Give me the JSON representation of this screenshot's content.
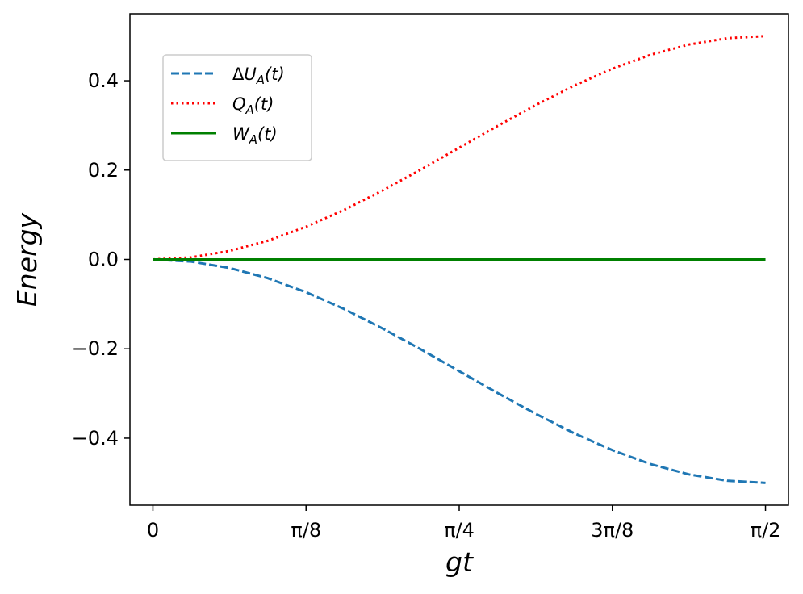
{
  "chart_data": {
    "type": "line",
    "xlabel": "gt",
    "ylabel": "Energy",
    "xlim": [
      -0.0589,
      1.6297
    ],
    "ylim": [
      -0.55,
      0.55
    ],
    "grid": false,
    "legend_placement": "upper-left",
    "x_ticks": [
      {
        "value": 0,
        "label": "0"
      },
      {
        "value": 0.3927,
        "label": "π/8"
      },
      {
        "value": 0.7854,
        "label": "π/4"
      },
      {
        "value": 1.1781,
        "label": "3π/8"
      },
      {
        "value": 1.5708,
        "label": "π/2"
      }
    ],
    "y_ticks": [
      {
        "value": -0.4,
        "label": "−0.4"
      },
      {
        "value": -0.2,
        "label": "−0.2"
      },
      {
        "value": 0.0,
        "label": "0.0"
      },
      {
        "value": 0.2,
        "label": "0.2"
      },
      {
        "value": 0.4,
        "label": "0.4"
      }
    ],
    "x": [
      0,
      0.0982,
      0.1963,
      0.2945,
      0.3927,
      0.4909,
      0.589,
      0.6872,
      0.7854,
      0.8836,
      0.9817,
      1.0799,
      1.1781,
      1.2763,
      1.3744,
      1.4726,
      1.5708
    ],
    "series": [
      {
        "name": "ΔU_A(t)",
        "legend_main": "ΔU",
        "legend_sub": "A",
        "legend_tail": "(t)",
        "color": "#1f77b4",
        "style": "dashed",
        "values": [
          0,
          -0.0048,
          -0.019,
          -0.0419,
          -0.0732,
          -0.1111,
          -0.1545,
          -0.2012,
          -0.25,
          -0.2988,
          -0.3455,
          -0.3889,
          -0.4268,
          -0.4581,
          -0.481,
          -0.4952,
          -0.5
        ]
      },
      {
        "name": "Q_A(t)",
        "legend_main": "Q",
        "legend_sub": "A",
        "legend_tail": "(t)",
        "color": "#ff0000",
        "style": "dotted",
        "values": [
          0,
          0.0048,
          0.019,
          0.0419,
          0.0732,
          0.1111,
          0.1545,
          0.2012,
          0.25,
          0.2988,
          0.3455,
          0.3889,
          0.4268,
          0.4581,
          0.481,
          0.4952,
          0.5
        ]
      },
      {
        "name": "W_A(t)",
        "legend_main": "W",
        "legend_sub": "A",
        "legend_tail": "(t)",
        "color": "#008000",
        "style": "solid",
        "values": [
          0,
          0,
          0,
          0,
          0,
          0,
          0,
          0,
          0,
          0,
          0,
          0,
          0,
          0,
          0,
          0,
          0
        ]
      }
    ]
  }
}
